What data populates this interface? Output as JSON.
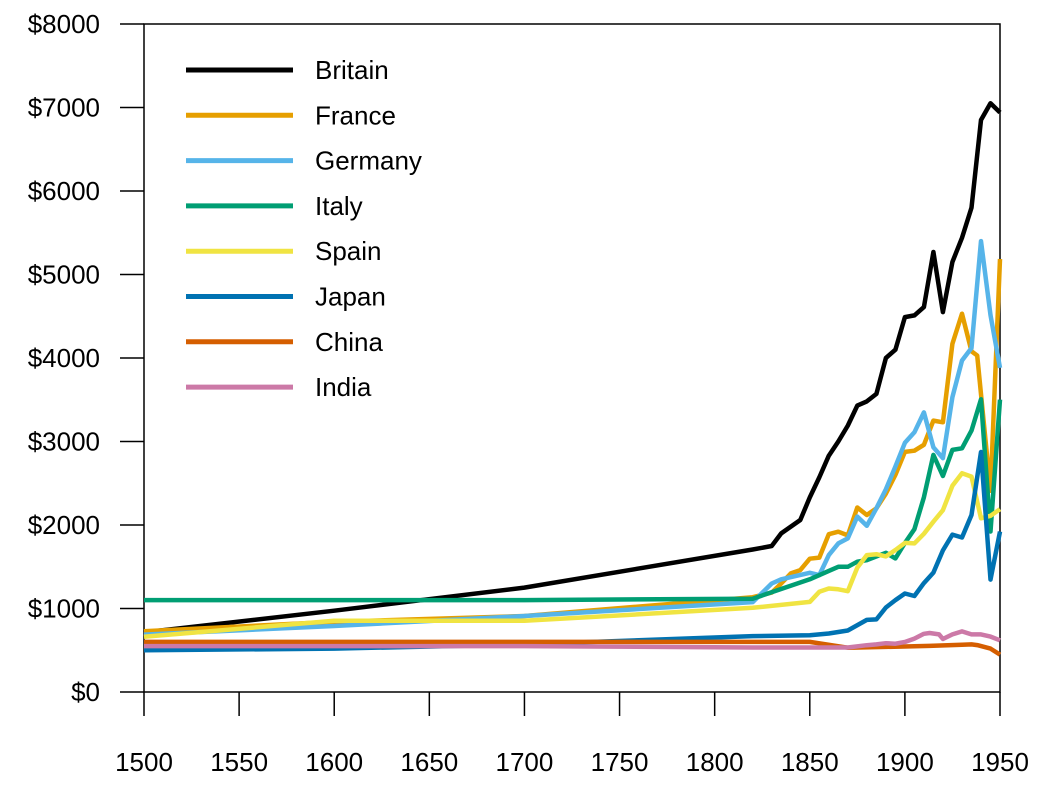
{
  "chart_data": {
    "type": "line",
    "title": "",
    "xlabel": "",
    "ylabel": "",
    "xlim": [
      1500,
      1950
    ],
    "ylim": [
      0,
      8000
    ],
    "x_ticks": [
      1500,
      1550,
      1600,
      1650,
      1700,
      1750,
      1800,
      1850,
      1900,
      1950
    ],
    "x_tick_labels": [
      "1500",
      "1550",
      "1600",
      "1650",
      "1700",
      "1750",
      "1800",
      "1850",
      "1900",
      "1950"
    ],
    "y_ticks": [
      0,
      1000,
      2000,
      3000,
      4000,
      5000,
      6000,
      7000,
      8000
    ],
    "y_tick_labels": [
      "$0",
      "$1000",
      "$2000",
      "$3000",
      "$4000",
      "$5000",
      "$6000",
      "$7000",
      "$8000"
    ],
    "grid": false,
    "legend_position": "top-left",
    "series": [
      {
        "name": "Britain",
        "color": "#000000",
        "points": [
          [
            1500,
            714
          ],
          [
            1600,
            974
          ],
          [
            1700,
            1250
          ],
          [
            1820,
            1706
          ],
          [
            1830,
            1749
          ],
          [
            1835,
            1900
          ],
          [
            1845,
            2060
          ],
          [
            1850,
            2330
          ],
          [
            1855,
            2570
          ],
          [
            1860,
            2830
          ],
          [
            1865,
            3000
          ],
          [
            1870,
            3190
          ],
          [
            1875,
            3430
          ],
          [
            1880,
            3480
          ],
          [
            1885,
            3570
          ],
          [
            1890,
            4000
          ],
          [
            1895,
            4100
          ],
          [
            1900,
            4490
          ],
          [
            1905,
            4510
          ],
          [
            1910,
            4610
          ],
          [
            1915,
            5270
          ],
          [
            1920,
            4550
          ],
          [
            1925,
            5150
          ],
          [
            1930,
            5440
          ],
          [
            1935,
            5800
          ],
          [
            1940,
            6850
          ],
          [
            1945,
            7050
          ],
          [
            1950,
            6940
          ]
        ]
      },
      {
        "name": "France",
        "color": "#E69F00",
        "points": [
          [
            1500,
            727
          ],
          [
            1600,
            841
          ],
          [
            1700,
            910
          ],
          [
            1820,
            1135
          ],
          [
            1830,
            1191
          ],
          [
            1835,
            1300
          ],
          [
            1840,
            1420
          ],
          [
            1845,
            1460
          ],
          [
            1850,
            1597
          ],
          [
            1855,
            1610
          ],
          [
            1860,
            1890
          ],
          [
            1865,
            1920
          ],
          [
            1870,
            1876
          ],
          [
            1875,
            2210
          ],
          [
            1880,
            2120
          ],
          [
            1885,
            2200
          ],
          [
            1890,
            2376
          ],
          [
            1895,
            2600
          ],
          [
            1900,
            2876
          ],
          [
            1905,
            2890
          ],
          [
            1910,
            2960
          ],
          [
            1915,
            3250
          ],
          [
            1920,
            3230
          ],
          [
            1925,
            4170
          ],
          [
            1930,
            4530
          ],
          [
            1935,
            4080
          ],
          [
            1938,
            4030
          ],
          [
            1945,
            2410
          ],
          [
            1950,
            5186
          ]
        ]
      },
      {
        "name": "Germany",
        "color": "#56B4E9",
        "points": [
          [
            1500,
            688
          ],
          [
            1600,
            791
          ],
          [
            1700,
            910
          ],
          [
            1820,
            1077
          ],
          [
            1830,
            1300
          ],
          [
            1835,
            1350
          ],
          [
            1850,
            1428
          ],
          [
            1855,
            1400
          ],
          [
            1860,
            1640
          ],
          [
            1865,
            1780
          ],
          [
            1870,
            1839
          ],
          [
            1875,
            2100
          ],
          [
            1880,
            1990
          ],
          [
            1885,
            2200
          ],
          [
            1890,
            2428
          ],
          [
            1895,
            2700
          ],
          [
            1900,
            2985
          ],
          [
            1905,
            3110
          ],
          [
            1910,
            3348
          ],
          [
            1915,
            2930
          ],
          [
            1920,
            2800
          ],
          [
            1925,
            3530
          ],
          [
            1930,
            3970
          ],
          [
            1935,
            4120
          ],
          [
            1940,
            5400
          ],
          [
            1945,
            4514
          ],
          [
            1950,
            3881
          ]
        ]
      },
      {
        "name": "Italy",
        "color": "#009E73",
        "points": [
          [
            1500,
            1100
          ],
          [
            1600,
            1100
          ],
          [
            1700,
            1100
          ],
          [
            1820,
            1117
          ],
          [
            1850,
            1350
          ],
          [
            1860,
            1450
          ],
          [
            1865,
            1500
          ],
          [
            1870,
            1499
          ],
          [
            1875,
            1560
          ],
          [
            1880,
            1580
          ],
          [
            1890,
            1667
          ],
          [
            1895,
            1600
          ],
          [
            1900,
            1785
          ],
          [
            1905,
            1950
          ],
          [
            1910,
            2332
          ],
          [
            1915,
            2840
          ],
          [
            1920,
            2587
          ],
          [
            1925,
            2900
          ],
          [
            1930,
            2918
          ],
          [
            1935,
            3130
          ],
          [
            1940,
            3505
          ],
          [
            1945,
            1922
          ],
          [
            1950,
            3502
          ]
        ]
      },
      {
        "name": "Spain",
        "color": "#F0E442",
        "points": [
          [
            1500,
            661
          ],
          [
            1600,
            853
          ],
          [
            1700,
            853
          ],
          [
            1820,
            1008
          ],
          [
            1850,
            1079
          ],
          [
            1855,
            1200
          ],
          [
            1860,
            1240
          ],
          [
            1865,
            1230
          ],
          [
            1870,
            1207
          ],
          [
            1875,
            1490
          ],
          [
            1880,
            1640
          ],
          [
            1885,
            1650
          ],
          [
            1890,
            1624
          ],
          [
            1895,
            1700
          ],
          [
            1900,
            1786
          ],
          [
            1905,
            1780
          ],
          [
            1910,
            1895
          ],
          [
            1915,
            2040
          ],
          [
            1920,
            2177
          ],
          [
            1925,
            2470
          ],
          [
            1930,
            2620
          ],
          [
            1935,
            2580
          ],
          [
            1940,
            2080
          ],
          [
            1945,
            2110
          ],
          [
            1950,
            2189
          ]
        ]
      },
      {
        "name": "Japan",
        "color": "#0072B2",
        "points": [
          [
            1500,
            500
          ],
          [
            1600,
            520
          ],
          [
            1700,
            570
          ],
          [
            1820,
            669
          ],
          [
            1850,
            679
          ],
          [
            1860,
            700
          ],
          [
            1870,
            737
          ],
          [
            1880,
            863
          ],
          [
            1885,
            870
          ],
          [
            1890,
            1012
          ],
          [
            1895,
            1100
          ],
          [
            1900,
            1180
          ],
          [
            1905,
            1150
          ],
          [
            1910,
            1304
          ],
          [
            1915,
            1430
          ],
          [
            1920,
            1696
          ],
          [
            1925,
            1885
          ],
          [
            1930,
            1850
          ],
          [
            1935,
            2120
          ],
          [
            1940,
            2874
          ],
          [
            1945,
            1346
          ],
          [
            1950,
            1921
          ]
        ]
      },
      {
        "name": "China",
        "color": "#D55E00",
        "points": [
          [
            1500,
            600
          ],
          [
            1600,
            600
          ],
          [
            1700,
            600
          ],
          [
            1820,
            600
          ],
          [
            1850,
            600
          ],
          [
            1870,
            530
          ],
          [
            1890,
            540
          ],
          [
            1913,
            552
          ],
          [
            1930,
            567
          ],
          [
            1935,
            570
          ],
          [
            1938,
            562
          ],
          [
            1945,
            520
          ],
          [
            1950,
            448
          ]
        ]
      },
      {
        "name": "India",
        "color": "#CC79A7",
        "points": [
          [
            1500,
            550
          ],
          [
            1600,
            550
          ],
          [
            1700,
            550
          ],
          [
            1820,
            533
          ],
          [
            1850,
            533
          ],
          [
            1870,
            533
          ],
          [
            1880,
            560
          ],
          [
            1885,
            570
          ],
          [
            1890,
            584
          ],
          [
            1895,
            578
          ],
          [
            1900,
            599
          ],
          [
            1905,
            640
          ],
          [
            1910,
            697
          ],
          [
            1913,
            706
          ],
          [
            1918,
            690
          ],
          [
            1920,
            635
          ],
          [
            1925,
            690
          ],
          [
            1930,
            726
          ],
          [
            1935,
            690
          ],
          [
            1940,
            690
          ],
          [
            1945,
            663
          ],
          [
            1950,
            619
          ]
        ]
      }
    ]
  }
}
